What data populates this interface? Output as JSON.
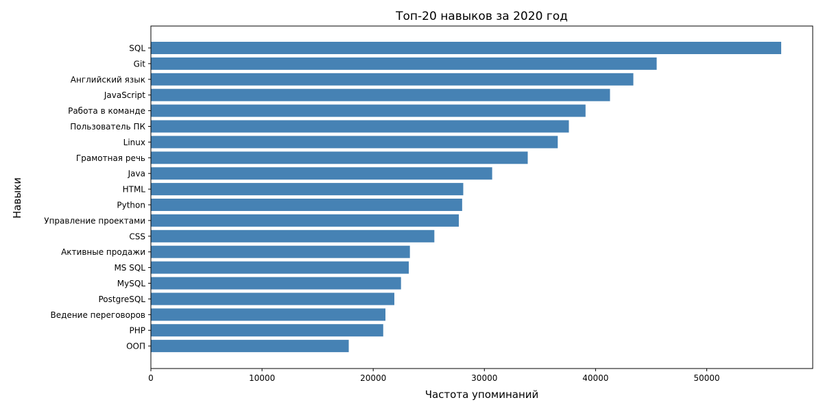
{
  "chart_data": {
    "type": "bar",
    "orientation": "horizontal",
    "title": "Топ-20 навыков за 2020 год",
    "xlabel": "Частота упоминаний",
    "ylabel": "Навыки",
    "categories": [
      "SQL",
      "Git",
      "Английский язык",
      "JavaScript",
      "Работа в команде",
      "Пользователь ПК",
      "Linux",
      "Грамотная речь",
      "Java",
      "HTML",
      "Python",
      "Управление проектами",
      "CSS",
      "Активные продажи",
      "MS SQL",
      "MySQL",
      "PostgreSQL",
      "Ведение переговоров",
      "PHP",
      "ООП"
    ],
    "values": [
      56700,
      45500,
      43400,
      41300,
      39100,
      37600,
      36600,
      33900,
      30700,
      28100,
      28000,
      27700,
      25500,
      23300,
      23200,
      22500,
      21900,
      21100,
      20900,
      17800
    ],
    "xticks": [
      0,
      10000,
      20000,
      30000,
      40000,
      50000
    ],
    "xlim": [
      0,
      59535
    ],
    "grid": false,
    "colors": {
      "bar": "#4682b4",
      "axis": "#000000",
      "background": "#ffffff"
    }
  }
}
